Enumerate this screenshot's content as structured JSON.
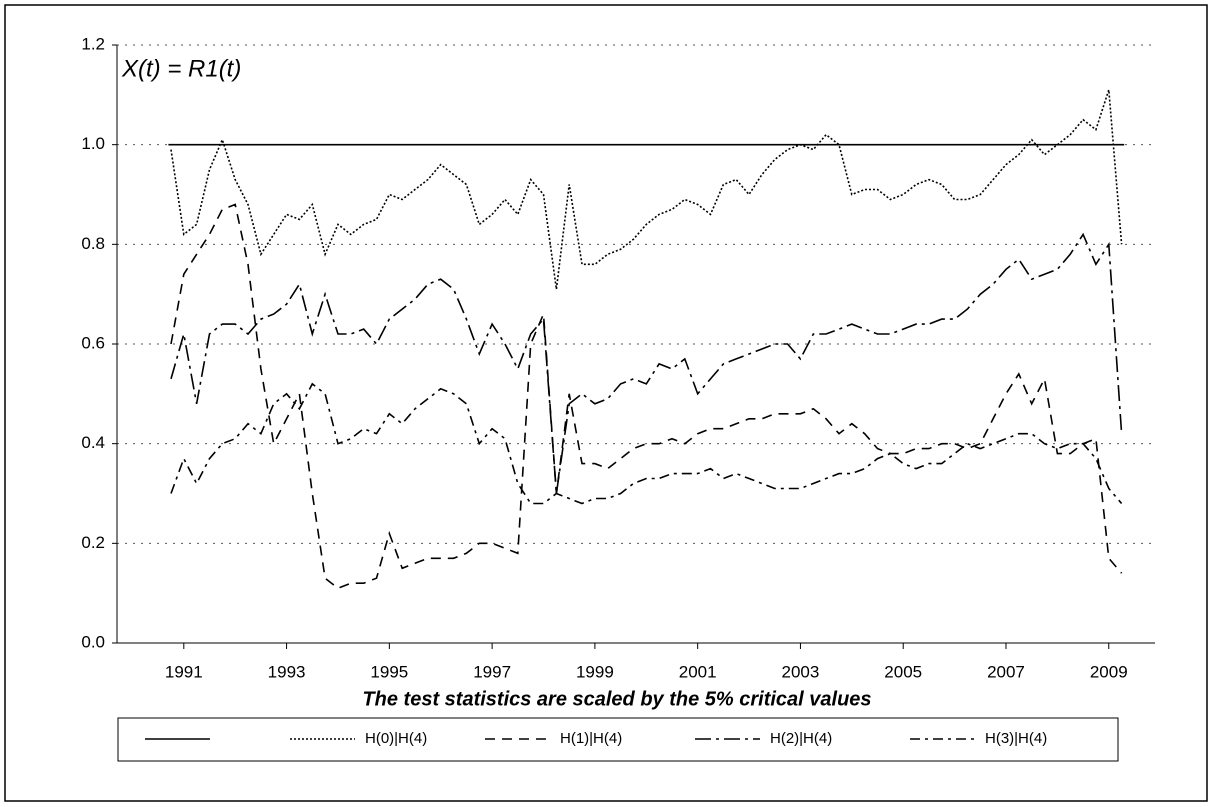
{
  "chart_data": {
    "type": "line",
    "annotation": "X(t) = R1(t)",
    "x_label": "The test statistics are scaled by the 5% critical values",
    "x": [
      1990.75,
      1991,
      1991.25,
      1991.5,
      1991.75,
      1992,
      1992.25,
      1992.5,
      1992.75,
      1993,
      1993.25,
      1993.5,
      1993.75,
      1994,
      1994.25,
      1994.5,
      1994.75,
      1995,
      1995.25,
      1995.5,
      1995.75,
      1996,
      1996.25,
      1996.5,
      1996.75,
      1997,
      1997.25,
      1997.5,
      1997.75,
      1998,
      1998.25,
      1998.5,
      1998.75,
      1999,
      1999.25,
      1999.5,
      1999.75,
      2000,
      2000.25,
      2000.5,
      2000.75,
      2001,
      2001.25,
      2001.5,
      2001.75,
      2002,
      2002.25,
      2002.5,
      2002.75,
      2003,
      2003.25,
      2003.5,
      2003.75,
      2004,
      2004.25,
      2004.5,
      2004.75,
      2005,
      2005.25,
      2005.5,
      2005.75,
      2006,
      2006.25,
      2006.5,
      2006.75,
      2007,
      2007.25,
      2007.5,
      2007.75,
      2008,
      2008.25,
      2008.5,
      2008.75,
      2009,
      2009.25
    ],
    "series": [
      {
        "color": "#000000",
        "dash": "solid",
        "x": [
          1990.7,
          2009.3
        ],
        "values": [
          1.0,
          1.0
        ]
      },
      {
        "name": "H(0)|H(4)",
        "color": "#000000",
        "dash": "dotted",
        "values": [
          0.99,
          0.82,
          0.84,
          0.95,
          1.01,
          0.93,
          0.88,
          0.78,
          0.82,
          0.86,
          0.85,
          0.88,
          0.78,
          0.84,
          0.82,
          0.84,
          0.85,
          0.9,
          0.89,
          0.91,
          0.93,
          0.96,
          0.94,
          0.92,
          0.84,
          0.86,
          0.89,
          0.86,
          0.93,
          0.9,
          0.71,
          0.92,
          0.76,
          0.76,
          0.78,
          0.79,
          0.81,
          0.84,
          0.86,
          0.87,
          0.89,
          0.88,
          0.86,
          0.92,
          0.93,
          0.9,
          0.94,
          0.97,
          0.99,
          1.0,
          0.99,
          1.02,
          1.0,
          0.9,
          0.91,
          0.91,
          0.89,
          0.9,
          0.92,
          0.93,
          0.92,
          0.89,
          0.89,
          0.9,
          0.93,
          0.96,
          0.98,
          1.01,
          0.98,
          1.0,
          1.02,
          1.05,
          1.03,
          1.11,
          0.8
        ]
      },
      {
        "name": "H(1)|H(4)",
        "color": "#000000",
        "dash": "dashed",
        "values": [
          0.6,
          0.74,
          0.78,
          0.82,
          0.87,
          0.88,
          0.76,
          0.55,
          0.4,
          0.45,
          0.5,
          0.3,
          0.13,
          0.11,
          0.12,
          0.12,
          0.13,
          0.22,
          0.15,
          0.16,
          0.17,
          0.17,
          0.17,
          0.18,
          0.2,
          0.2,
          0.19,
          0.18,
          0.6,
          0.66,
          0.3,
          0.5,
          0.36,
          0.36,
          0.35,
          0.37,
          0.39,
          0.4,
          0.4,
          0.41,
          0.4,
          0.42,
          0.43,
          0.43,
          0.44,
          0.45,
          0.45,
          0.46,
          0.46,
          0.46,
          0.47,
          0.45,
          0.42,
          0.44,
          0.42,
          0.39,
          0.38,
          0.38,
          0.39,
          0.39,
          0.4,
          0.4,
          0.39,
          0.4,
          0.45,
          0.5,
          0.54,
          0.48,
          0.53,
          0.38,
          0.38,
          0.4,
          0.41,
          0.17,
          0.14
        ]
      },
      {
        "name": "H(2)|H(4)",
        "color": "#000000",
        "dash": "longdashdot",
        "values": [
          0.53,
          0.62,
          0.48,
          0.62,
          0.64,
          0.64,
          0.62,
          0.65,
          0.66,
          0.68,
          0.72,
          0.62,
          0.7,
          0.62,
          0.62,
          0.63,
          0.6,
          0.65,
          0.67,
          0.69,
          0.72,
          0.73,
          0.71,
          0.65,
          0.58,
          0.64,
          0.6,
          0.55,
          0.62,
          0.65,
          0.3,
          0.48,
          0.5,
          0.48,
          0.49,
          0.52,
          0.53,
          0.52,
          0.56,
          0.55,
          0.57,
          0.5,
          0.53,
          0.56,
          0.57,
          0.58,
          0.59,
          0.6,
          0.6,
          0.57,
          0.62,
          0.62,
          0.63,
          0.64,
          0.63,
          0.62,
          0.62,
          0.63,
          0.64,
          0.64,
          0.65,
          0.65,
          0.67,
          0.7,
          0.72,
          0.75,
          0.77,
          0.73,
          0.74,
          0.75,
          0.78,
          0.82,
          0.76,
          0.8,
          0.42
        ]
      },
      {
        "name": "H(3)|H(4)",
        "color": "#000000",
        "dash": "dashdot",
        "values": [
          0.3,
          0.37,
          0.32,
          0.37,
          0.4,
          0.41,
          0.44,
          0.42,
          0.48,
          0.5,
          0.47,
          0.52,
          0.5,
          0.4,
          0.41,
          0.43,
          0.42,
          0.46,
          0.44,
          0.47,
          0.49,
          0.51,
          0.5,
          0.48,
          0.4,
          0.43,
          0.41,
          0.32,
          0.28,
          0.28,
          0.3,
          0.29,
          0.28,
          0.29,
          0.29,
          0.3,
          0.32,
          0.33,
          0.33,
          0.34,
          0.34,
          0.34,
          0.35,
          0.33,
          0.34,
          0.33,
          0.32,
          0.31,
          0.31,
          0.31,
          0.32,
          0.33,
          0.34,
          0.34,
          0.35,
          0.37,
          0.38,
          0.36,
          0.35,
          0.36,
          0.36,
          0.38,
          0.4,
          0.39,
          0.4,
          0.41,
          0.42,
          0.42,
          0.4,
          0.39,
          0.4,
          0.4,
          0.37,
          0.31,
          0.28
        ]
      }
    ],
    "xlim": [
      1989.7,
      2009.9
    ],
    "xticks": [
      1991,
      1993,
      1995,
      1997,
      1999,
      2001,
      2003,
      2005,
      2007,
      2009
    ],
    "ylim": [
      0,
      1.2
    ],
    "yticks": [
      {
        "value": 0,
        "label": "0.0"
      },
      {
        "value": 0.2,
        "label": "0.2"
      },
      {
        "value": 0.4,
        "label": "0.4"
      },
      {
        "value": 0.6,
        "label": "0.6"
      },
      {
        "value": 0.8,
        "label": "0.8"
      },
      {
        "value": 1.0,
        "label": "1.0"
      },
      {
        "value": 1.2,
        "label": "1.2"
      }
    ],
    "grid": true
  }
}
